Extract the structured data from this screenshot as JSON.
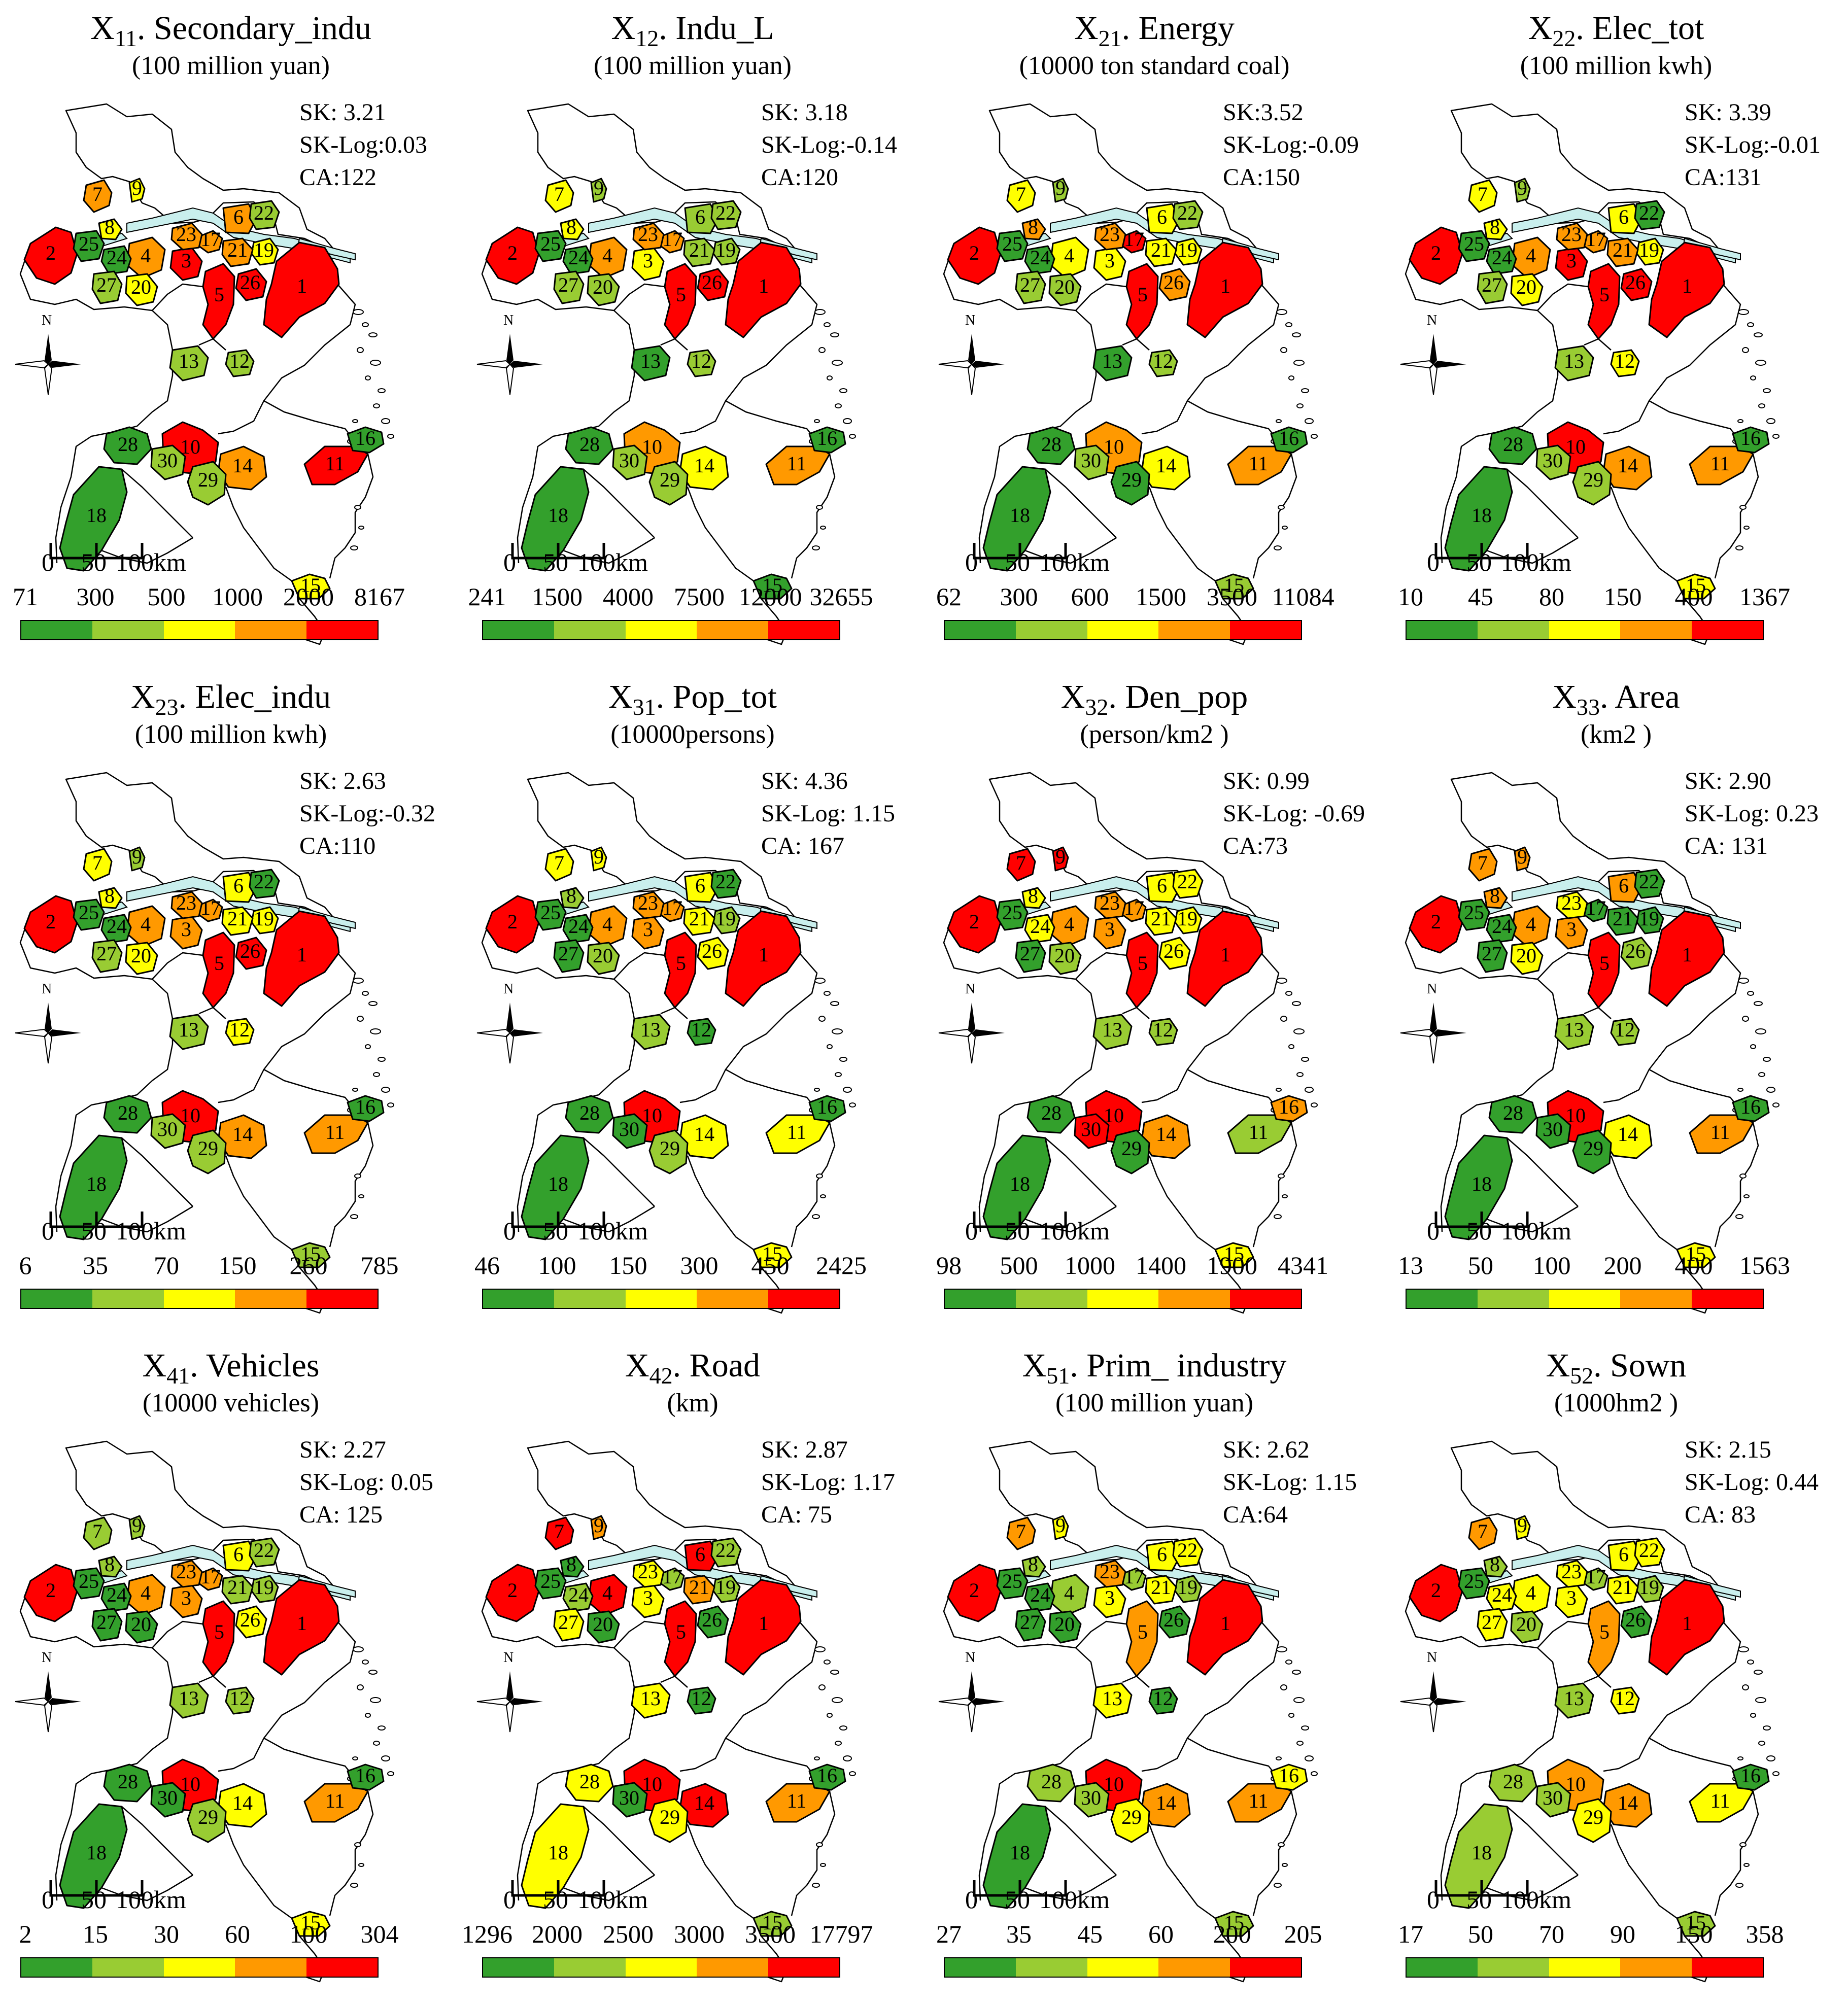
{
  "figure": {
    "region_labels": [
      "1",
      "2",
      "3",
      "4",
      "5",
      "6",
      "7",
      "8",
      "9",
      "10",
      "11",
      "12",
      "13",
      "14",
      "15",
      "16",
      "17",
      "18",
      "19",
      "20",
      "21",
      "22",
      "23",
      "24",
      "25",
      "26",
      "27",
      "28",
      "29",
      "30"
    ],
    "legend_colors": [
      "#33a02c",
      "#99cc33",
      "#ffff00",
      "#ff9900",
      "#ff0000"
    ],
    "color_names": {
      "g": "#33a02c",
      "l": "#99cc33",
      "y": "#ffff00",
      "o": "#ff9900",
      "r": "#ff0000"
    },
    "scale_bar": {
      "zero": "0",
      "fifty": "50",
      "hundred": "100km"
    },
    "north_label": "N"
  },
  "panels": [
    {
      "title_var": "X",
      "title_sub": "11",
      "title_rest": ". Secondary_indu",
      "unit": "(100 million yuan)",
      "stats": [
        "SK: 3.21",
        "SK-Log:0.03",
        "CA:122"
      ],
      "legend_ticks": [
        "71",
        "300",
        "500",
        "1000",
        "2000",
        "8167"
      ],
      "region_colors": {
        "1": "r",
        "2": "r",
        "3": "r",
        "4": "o",
        "5": "r",
        "6": "o",
        "7": "o",
        "8": "y",
        "9": "y",
        "10": "r",
        "11": "r",
        "12": "l",
        "13": "l",
        "14": "o",
        "15": "y",
        "16": "g",
        "17": "o",
        "18": "g",
        "19": "y",
        "20": "y",
        "21": "o",
        "22": "l",
        "23": "o",
        "24": "g",
        "25": "g",
        "26": "r",
        "27": "l",
        "28": "g",
        "29": "l",
        "30": "l"
      }
    },
    {
      "title_var": "X",
      "title_sub": "12",
      "title_rest": ". Indu_L",
      "unit": "(100 million yuan)",
      "stats": [
        "SK: 3.18",
        "SK-Log:-0.14",
        "CA:120"
      ],
      "legend_ticks": [
        "241",
        "1500",
        "4000",
        "7500",
        "12000",
        "32655"
      ],
      "region_colors": {
        "1": "r",
        "2": "r",
        "3": "y",
        "4": "o",
        "5": "r",
        "6": "l",
        "7": "y",
        "8": "y",
        "9": "l",
        "10": "o",
        "11": "o",
        "12": "l",
        "13": "g",
        "14": "y",
        "15": "g",
        "16": "g",
        "17": "o",
        "18": "g",
        "19": "l",
        "20": "l",
        "21": "l",
        "22": "l",
        "23": "o",
        "24": "g",
        "25": "g",
        "26": "r",
        "27": "l",
        "28": "g",
        "29": "l",
        "30": "l"
      }
    },
    {
      "title_var": "X",
      "title_sub": "21",
      "title_rest": ". Energy",
      "unit": "(10000 ton standard coal)",
      "stats": [
        "SK:3.52",
        "SK-Log:-0.09",
        "CA:150"
      ],
      "legend_ticks": [
        "62",
        "300",
        "600",
        "1500",
        "3500",
        "11084"
      ],
      "region_colors": {
        "1": "r",
        "2": "r",
        "3": "y",
        "4": "y",
        "5": "r",
        "6": "y",
        "7": "y",
        "8": "o",
        "9": "l",
        "10": "o",
        "11": "o",
        "12": "l",
        "13": "g",
        "14": "y",
        "15": "l",
        "16": "g",
        "17": "r",
        "18": "g",
        "19": "y",
        "20": "l",
        "21": "y",
        "22": "l",
        "23": "o",
        "24": "g",
        "25": "g",
        "26": "o",
        "27": "l",
        "28": "g",
        "29": "g",
        "30": "l"
      }
    },
    {
      "title_var": "X",
      "title_sub": "22",
      "title_rest": ". Elec_tot",
      "unit": "(100 million kwh)",
      "stats": [
        "SK: 3.39",
        "SK-Log:-0.01",
        "CA:131"
      ],
      "legend_ticks": [
        "10",
        "45",
        "80",
        "150",
        "400",
        "1367"
      ],
      "region_colors": {
        "1": "r",
        "2": "r",
        "3": "r",
        "4": "o",
        "5": "r",
        "6": "y",
        "7": "y",
        "8": "y",
        "9": "l",
        "10": "r",
        "11": "o",
        "12": "y",
        "13": "l",
        "14": "o",
        "15": "y",
        "16": "g",
        "17": "o",
        "18": "g",
        "19": "y",
        "20": "y",
        "21": "o",
        "22": "g",
        "23": "o",
        "24": "g",
        "25": "g",
        "26": "r",
        "27": "l",
        "28": "g",
        "29": "l",
        "30": "l"
      }
    },
    {
      "title_var": "X",
      "title_sub": "23",
      "title_rest": ". Elec_indu",
      "unit": "(100 million kwh)",
      "stats": [
        "SK: 2.63",
        "SK-Log:-0.32",
        "CA:110"
      ],
      "legend_ticks": [
        "6",
        "35",
        "70",
        "150",
        "260",
        "785"
      ],
      "region_colors": {
        "1": "r",
        "2": "r",
        "3": "o",
        "4": "o",
        "5": "r",
        "6": "y",
        "7": "y",
        "8": "y",
        "9": "l",
        "10": "r",
        "11": "o",
        "12": "y",
        "13": "l",
        "14": "o",
        "15": "l",
        "16": "g",
        "17": "o",
        "18": "g",
        "19": "y",
        "20": "y",
        "21": "y",
        "22": "g",
        "23": "o",
        "24": "g",
        "25": "g",
        "26": "r",
        "27": "l",
        "28": "g",
        "29": "l",
        "30": "l"
      }
    },
    {
      "title_var": "X",
      "title_sub": "31",
      "title_rest": ". Pop_tot",
      "unit": "(10000persons)",
      "stats": [
        "SK: 4.36",
        "SK-Log: 1.15",
        "CA: 167"
      ],
      "legend_ticks": [
        "46",
        "100",
        "150",
        "300",
        "450",
        "2425"
      ],
      "region_colors": {
        "1": "r",
        "2": "r",
        "3": "o",
        "4": "o",
        "5": "r",
        "6": "y",
        "7": "y",
        "8": "l",
        "9": "y",
        "10": "r",
        "11": "y",
        "12": "g",
        "13": "l",
        "14": "y",
        "15": "y",
        "16": "g",
        "17": "o",
        "18": "g",
        "19": "l",
        "20": "l",
        "21": "y",
        "22": "g",
        "23": "o",
        "24": "g",
        "25": "g",
        "26": "y",
        "27": "g",
        "28": "g",
        "29": "l",
        "30": "g"
      }
    },
    {
      "title_var": "X",
      "title_sub": "32",
      "title_rest": ". Den_pop",
      "unit": "(person/km2 )",
      "stats": [
        "SK: 0.99",
        "SK-Log: -0.69",
        "CA:73"
      ],
      "legend_ticks": [
        "98",
        "500",
        "1000",
        "1400",
        "1900",
        "4341"
      ],
      "region_colors": {
        "1": "r",
        "2": "r",
        "3": "o",
        "4": "o",
        "5": "r",
        "6": "y",
        "7": "r",
        "8": "y",
        "9": "r",
        "10": "r",
        "11": "l",
        "12": "l",
        "13": "l",
        "14": "o",
        "15": "y",
        "16": "o",
        "17": "o",
        "18": "g",
        "19": "y",
        "20": "l",
        "21": "y",
        "22": "y",
        "23": "o",
        "24": "y",
        "25": "g",
        "26": "y",
        "27": "g",
        "28": "g",
        "29": "g",
        "30": "r"
      }
    },
    {
      "title_var": "X",
      "title_sub": "33",
      "title_rest": ". Area",
      "unit": "(km2 )",
      "stats": [
        "SK: 2.90",
        "SK-Log: 0.23",
        "CA: 131"
      ],
      "legend_ticks": [
        "13",
        "50",
        "100",
        "200",
        "400",
        "1563"
      ],
      "region_colors": {
        "1": "r",
        "2": "r",
        "3": "o",
        "4": "o",
        "5": "r",
        "6": "o",
        "7": "o",
        "8": "o",
        "9": "o",
        "10": "r",
        "11": "o",
        "12": "l",
        "13": "l",
        "14": "y",
        "15": "y",
        "16": "g",
        "17": "g",
        "18": "g",
        "19": "g",
        "20": "y",
        "21": "g",
        "22": "g",
        "23": "y",
        "24": "g",
        "25": "g",
        "26": "l",
        "27": "g",
        "28": "g",
        "29": "g",
        "30": "g"
      }
    },
    {
      "title_var": "X",
      "title_sub": "41",
      "title_rest": ". Vehicles",
      "unit": "(10000 vehicles)",
      "stats": [
        "SK: 2.27",
        "SK-Log: 0.05",
        "CA: 125"
      ],
      "legend_ticks": [
        "2",
        "15",
        "30",
        "60",
        "100",
        "304"
      ],
      "region_colors": {
        "1": "r",
        "2": "r",
        "3": "o",
        "4": "o",
        "5": "r",
        "6": "y",
        "7": "l",
        "8": "l",
        "9": "l",
        "10": "r",
        "11": "o",
        "12": "l",
        "13": "l",
        "14": "y",
        "15": "y",
        "16": "g",
        "17": "o",
        "18": "g",
        "19": "l",
        "20": "g",
        "21": "l",
        "22": "l",
        "23": "o",
        "24": "g",
        "25": "g",
        "26": "y",
        "27": "g",
        "28": "g",
        "29": "l",
        "30": "g"
      }
    },
    {
      "title_var": "X",
      "title_sub": "42",
      "title_rest": ". Road",
      "unit": "(km)",
      "stats": [
        "SK: 2.87",
        "SK-Log: 1.17",
        "CA: 75"
      ],
      "legend_ticks": [
        "1296",
        "2000",
        "2500",
        "3000",
        "3500",
        "17797"
      ],
      "region_colors": {
        "1": "r",
        "2": "r",
        "3": "y",
        "4": "r",
        "5": "r",
        "6": "r",
        "7": "r",
        "8": "g",
        "9": "o",
        "10": "r",
        "11": "o",
        "12": "g",
        "13": "y",
        "14": "r",
        "15": "l",
        "16": "g",
        "17": "l",
        "18": "y",
        "19": "l",
        "20": "g",
        "21": "o",
        "22": "l",
        "23": "y",
        "24": "l",
        "25": "g",
        "26": "g",
        "27": "y",
        "28": "y",
        "29": "y",
        "30": "g"
      }
    },
    {
      "title_var": "X",
      "title_sub": "51",
      "title_rest": ". Prim_ industry",
      "unit": "(100 million yuan)",
      "stats": [
        "SK: 2.62",
        "SK-Log: 1.15",
        "CA:64"
      ],
      "legend_ticks": [
        "27",
        "35",
        "45",
        "60",
        "200",
        "205"
      ],
      "region_colors": {
        "1": "r",
        "2": "r",
        "3": "y",
        "4": "l",
        "5": "o",
        "6": "y",
        "7": "o",
        "8": "l",
        "9": "y",
        "10": "r",
        "11": "o",
        "12": "g",
        "13": "y",
        "14": "o",
        "15": "l",
        "16": "y",
        "17": "l",
        "18": "g",
        "19": "l",
        "20": "g",
        "21": "y",
        "22": "y",
        "23": "o",
        "24": "g",
        "25": "g",
        "26": "g",
        "27": "g",
        "28": "l",
        "29": "y",
        "30": "l"
      }
    },
    {
      "title_var": "X",
      "title_sub": "52",
      "title_rest": ". Sown",
      "unit": "(1000hm2 )",
      "stats": [
        "SK: 2.15",
        "SK-Log: 0.44",
        "CA: 83"
      ],
      "legend_ticks": [
        "17",
        "50",
        "70",
        "90",
        "150",
        "358"
      ],
      "region_colors": {
        "1": "r",
        "2": "r",
        "3": "y",
        "4": "y",
        "5": "o",
        "6": "y",
        "7": "o",
        "8": "l",
        "9": "y",
        "10": "o",
        "11": "y",
        "12": "y",
        "13": "l",
        "14": "o",
        "15": "l",
        "16": "g",
        "17": "l",
        "18": "l",
        "19": "l",
        "20": "l",
        "21": "y",
        "22": "y",
        "23": "y",
        "24": "y",
        "25": "g",
        "26": "g",
        "27": "y",
        "28": "l",
        "29": "y",
        "30": "l"
      }
    }
  ]
}
